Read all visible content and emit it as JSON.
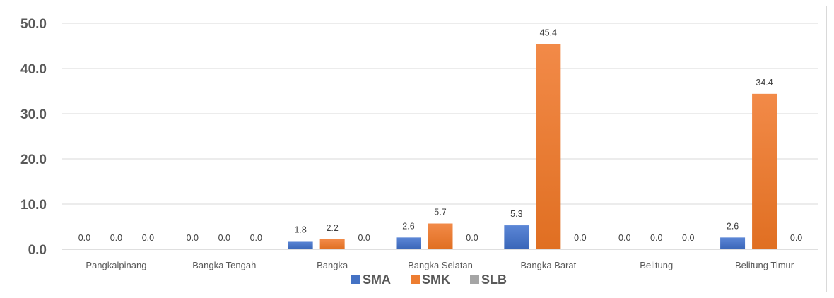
{
  "chart_data": {
    "type": "bar",
    "categories": [
      "Pangkalpinang",
      "Bangka Tengah",
      "Bangka",
      "Bangka Selatan",
      "Bangka Barat",
      "Belitung",
      "Belitung Timur"
    ],
    "series": [
      {
        "name": "SMA",
        "values": [
          0.0,
          0.0,
          1.8,
          2.6,
          5.3,
          0.0,
          2.6
        ],
        "color": "#4472c4"
      },
      {
        "name": "SMK",
        "values": [
          0.0,
          0.0,
          2.2,
          5.7,
          45.4,
          0.0,
          34.4
        ],
        "color": "#ed7d31"
      },
      {
        "name": "SLB",
        "values": [
          0.0,
          0.0,
          0.0,
          0.0,
          0.0,
          0.0,
          0.0
        ],
        "color": "#a5a5a5"
      }
    ],
    "yticks": [
      "0.0",
      "10.0",
      "20.0",
      "30.0",
      "40.0",
      "50.0"
    ],
    "ylim": [
      0,
      50
    ],
    "grid": true,
    "legend_position": "bottom",
    "data_labels": true
  }
}
